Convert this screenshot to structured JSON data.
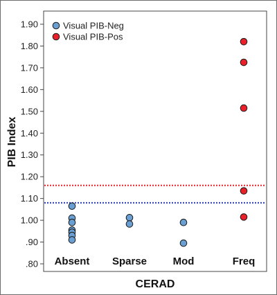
{
  "chart_data": {
    "type": "scatter",
    "xlabel": "CERAD",
    "ylabel": "PIB Index",
    "categories": [
      "Absent",
      "Sparse",
      "Mod",
      "Freq"
    ],
    "ylim": [
      0.8,
      1.95
    ],
    "yticks": [
      ".80",
      ".90",
      "1.00",
      "1.10",
      "1.20",
      "1.30",
      "1.40",
      "1.50",
      "1.60",
      "1.70",
      "1.80",
      "1.90"
    ],
    "grid": false,
    "legend_position": "top-left",
    "series": [
      {
        "name": "Visual PIB-Neg",
        "color": "#6a9fd4",
        "points": [
          {
            "x": "Absent",
            "y": 1.065
          },
          {
            "x": "Absent",
            "y": 1.01
          },
          {
            "x": "Absent",
            "y": 0.99
          },
          {
            "x": "Absent",
            "y": 0.955
          },
          {
            "x": "Absent",
            "y": 0.945
          },
          {
            "x": "Absent",
            "y": 0.93
          },
          {
            "x": "Absent",
            "y": 0.91
          },
          {
            "x": "Sparse",
            "y": 1.012
          },
          {
            "x": "Sparse",
            "y": 0.983
          },
          {
            "x": "Mod",
            "y": 0.99
          },
          {
            "x": "Mod",
            "y": 0.895
          }
        ]
      },
      {
        "name": "Visual PIB-Pos",
        "color": "#e8202a",
        "points": [
          {
            "x": "Freq",
            "y": 1.82
          },
          {
            "x": "Freq",
            "y": 1.725
          },
          {
            "x": "Freq",
            "y": 1.515
          },
          {
            "x": "Freq",
            "y": 1.135
          },
          {
            "x": "Freq",
            "y": 1.015
          }
        ]
      }
    ],
    "reference_lines": [
      {
        "y": 1.16,
        "color": "#e8202a",
        "style": "dotted"
      },
      {
        "y": 1.08,
        "color": "#2b3bb5",
        "style": "dotted"
      }
    ]
  }
}
